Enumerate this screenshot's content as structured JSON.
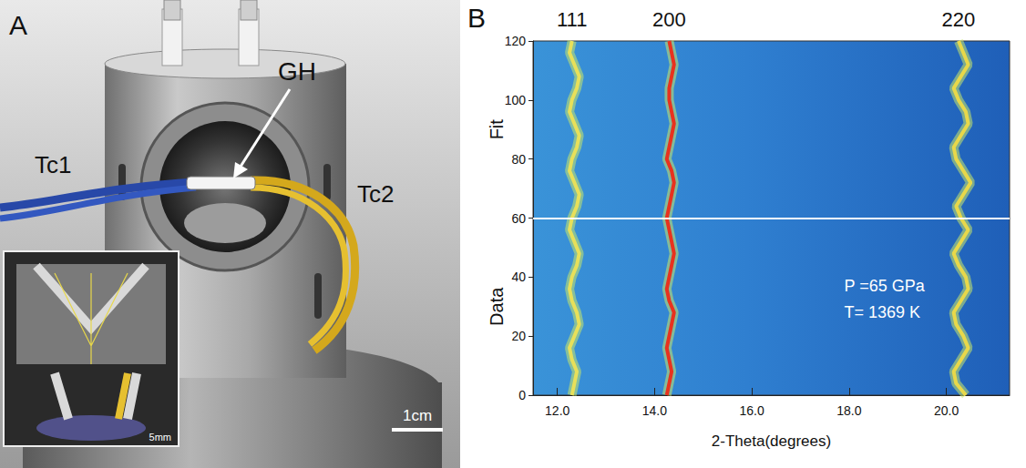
{
  "figure": {
    "panel_a": {
      "letter": "A",
      "labels": {
        "left_thermocouple": "Tc1",
        "right_thermocouple": "Tc2",
        "heater": "GH",
        "scale_bar": "1cm",
        "inset_scale_bar": "5mm"
      }
    },
    "panel_b": {
      "letter": "B"
    }
  },
  "chart_data": {
    "type": "line",
    "x_label": "2-Theta(degrees)",
    "y_titles": [
      {
        "text": "Data",
        "y": 30
      },
      {
        "text": "Fit",
        "y": 90
      }
    ],
    "annotations": [
      {
        "text": "P =65 GPa",
        "x": 17.9,
        "y": 37
      },
      {
        "text": "T= 1369 K",
        "x": 17.9,
        "y": 28
      }
    ],
    "divider_y": 60,
    "xlim": [
      11.5,
      21.3
    ],
    "xticks": [
      {
        "value": 12,
        "label": "12.0"
      },
      {
        "value": 14,
        "label": "14.0"
      },
      {
        "value": 16,
        "label": "16.0"
      },
      {
        "value": 18,
        "label": "18.0"
      },
      {
        "value": 20,
        "label": "20.0"
      }
    ],
    "ylim": [
      0,
      120
    ],
    "yticks": [
      0,
      20,
      40,
      60,
      80,
      100,
      120
    ],
    "y": [
      0,
      4,
      8,
      12,
      16,
      20,
      24,
      28,
      32,
      36,
      40,
      44,
      48,
      52,
      56,
      60,
      64,
      68,
      72,
      76,
      80,
      84,
      88,
      92,
      96,
      100,
      104,
      108,
      112,
      116,
      120
    ],
    "series": [
      {
        "name": "111",
        "color": "#e8e05a",
        "values": [
          12.3,
          12.35,
          12.4,
          12.3,
          12.25,
          12.35,
          12.45,
          12.4,
          12.3,
          12.25,
          12.3,
          12.4,
          12.45,
          12.35,
          12.25,
          12.3,
          12.4,
          12.45,
          12.35,
          12.25,
          12.3,
          12.4,
          12.45,
          12.35,
          12.25,
          12.3,
          12.4,
          12.45,
          12.35,
          12.25,
          12.3
        ]
      },
      {
        "name": "200",
        "color": "#e8321e",
        "values": [
          14.25,
          14.3,
          14.35,
          14.3,
          14.25,
          14.3,
          14.35,
          14.4,
          14.3,
          14.25,
          14.3,
          14.35,
          14.4,
          14.35,
          14.3,
          14.25,
          14.3,
          14.35,
          14.4,
          14.35,
          14.25,
          14.3,
          14.35,
          14.4,
          14.35,
          14.3,
          14.3,
          14.35,
          14.4,
          14.35,
          14.3
        ]
      },
      {
        "name": "220",
        "color": "#e8d84a",
        "values": [
          20.4,
          20.2,
          20.15,
          20.3,
          20.45,
          20.35,
          20.2,
          20.15,
          20.3,
          20.45,
          20.4,
          20.25,
          20.15,
          20.3,
          20.45,
          20.3,
          20.2,
          20.35,
          20.5,
          20.35,
          20.2,
          20.15,
          20.3,
          20.45,
          20.4,
          20.25,
          20.15,
          20.3,
          20.45,
          20.35,
          20.25
        ]
      }
    ],
    "grid": false
  }
}
